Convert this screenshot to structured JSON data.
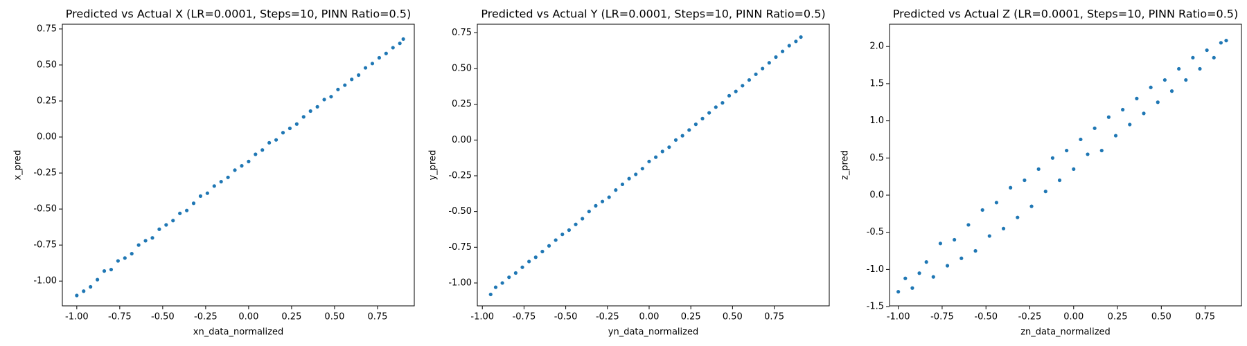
{
  "chart_data": [
    {
      "type": "scatter",
      "title": "Predicted vs Actual X (LR=0.0001, Steps=10, PINN Ratio=0.5)",
      "x_label": "xn_data_normalized",
      "y_label": "x_pred",
      "color": "#1f77b4",
      "xlim": [
        -1.084,
        0.964
      ],
      "ylim": [
        -1.172,
        0.783
      ],
      "xticks": [
        {
          "value": -1,
          "label": "-1.00"
        },
        -0.75,
        {
          "value": -0.5,
          "label": "-0.50"
        },
        -0.25,
        {
          "value": 0,
          "label": "0.00"
        },
        0.25,
        {
          "value": 0.5,
          "label": "0.50"
        },
        0.75
      ],
      "yticks": [
        {
          "value": -1,
          "label": "-1.00"
        },
        -0.75,
        {
          "value": -0.5,
          "label": "-0.50"
        },
        -0.25,
        {
          "value": 0,
          "label": "0.00"
        },
        0.25,
        {
          "value": 0.5,
          "label": "0.50"
        },
        0.75
      ],
      "x": [
        -1.0,
        -0.96,
        -0.92,
        -0.88,
        -0.84,
        -0.8,
        -0.76,
        -0.72,
        -0.68,
        -0.64,
        -0.6,
        -0.56,
        -0.52,
        -0.48,
        -0.44,
        -0.4,
        -0.36,
        -0.32,
        -0.28,
        -0.24,
        -0.2,
        -0.16,
        -0.12,
        -0.08,
        -0.04,
        0.0,
        0.04,
        0.08,
        0.12,
        0.16,
        0.2,
        0.24,
        0.28,
        0.32,
        0.36,
        0.4,
        0.44,
        0.48,
        0.52,
        0.56,
        0.6,
        0.64,
        0.68,
        0.72,
        0.76,
        0.8,
        0.84,
        0.88,
        0.9
      ],
      "values": [
        -1.1,
        -1.07,
        -1.04,
        -0.99,
        -0.93,
        -0.92,
        -0.86,
        -0.84,
        -0.81,
        -0.75,
        -0.72,
        -0.7,
        -0.64,
        -0.61,
        -0.58,
        -0.53,
        -0.51,
        -0.46,
        -0.41,
        -0.39,
        -0.34,
        -0.31,
        -0.28,
        -0.23,
        -0.2,
        -0.17,
        -0.12,
        -0.09,
        -0.04,
        -0.02,
        0.03,
        0.06,
        0.09,
        0.14,
        0.18,
        0.21,
        0.26,
        0.28,
        0.33,
        0.36,
        0.4,
        0.43,
        0.48,
        0.51,
        0.55,
        0.58,
        0.62,
        0.65,
        0.68
      ]
    },
    {
      "type": "scatter",
      "title": "Predicted vs Actual Y (LR=0.0001, Steps=10, PINN Ratio=0.5)",
      "x_label": "yn_data_normalized",
      "y_label": "y_pred",
      "color": "#1f77b4",
      "xlim": [
        -1.03,
        1.08
      ],
      "ylim": [
        -1.16,
        0.81
      ],
      "xticks": [
        {
          "value": -1,
          "label": "-1.00"
        },
        -0.75,
        {
          "value": -0.5,
          "label": "-0.50"
        },
        -0.25,
        {
          "value": 0,
          "label": "0.00"
        },
        0.25,
        {
          "value": 0.5,
          "label": "0.50"
        },
        0.75
      ],
      "yticks": [
        {
          "value": -1,
          "label": "-1.00"
        },
        -0.75,
        {
          "value": -0.5,
          "label": "-0.50"
        },
        -0.25,
        {
          "value": 0,
          "label": "0.00"
        },
        0.25,
        {
          "value": 0.5,
          "label": "0.50"
        },
        0.75
      ],
      "x": [
        -0.95,
        -0.92,
        -0.88,
        -0.84,
        -0.8,
        -0.76,
        -0.72,
        -0.68,
        -0.64,
        -0.6,
        -0.56,
        -0.52,
        -0.48,
        -0.44,
        -0.4,
        -0.36,
        -0.32,
        -0.28,
        -0.24,
        -0.2,
        -0.16,
        -0.12,
        -0.08,
        -0.04,
        0.0,
        0.04,
        0.08,
        0.12,
        0.16,
        0.2,
        0.24,
        0.28,
        0.32,
        0.36,
        0.4,
        0.44,
        0.48,
        0.52,
        0.56,
        0.6,
        0.64,
        0.68,
        0.72,
        0.76,
        0.8,
        0.84,
        0.88,
        0.91
      ],
      "values": [
        -1.08,
        -1.03,
        -1.0,
        -0.96,
        -0.93,
        -0.89,
        -0.85,
        -0.82,
        -0.78,
        -0.74,
        -0.7,
        -0.66,
        -0.63,
        -0.59,
        -0.55,
        -0.5,
        -0.46,
        -0.43,
        -0.4,
        -0.35,
        -0.31,
        -0.27,
        -0.24,
        -0.2,
        -0.15,
        -0.12,
        -0.08,
        -0.05,
        0.0,
        0.03,
        0.07,
        0.11,
        0.15,
        0.19,
        0.23,
        0.26,
        0.31,
        0.34,
        0.38,
        0.42,
        0.46,
        0.5,
        0.54,
        0.58,
        0.62,
        0.66,
        0.69,
        0.72
      ]
    },
    {
      "type": "scatter",
      "title": "Predicted vs Actual Z (LR=0.0001, Steps=10, PINN Ratio=0.5)",
      "x_label": "zn_data_normalized",
      "y_label": "z_pred",
      "color": "#1f77b4",
      "xlim": [
        -1.05,
        0.957
      ],
      "ylim": [
        -1.49,
        2.3
      ],
      "xticks": [
        {
          "value": -1,
          "label": "-1.00"
        },
        -0.75,
        {
          "value": -0.5,
          "label": "-0.50"
        },
        -0.25,
        {
          "value": 0,
          "label": "0.00"
        },
        0.25,
        {
          "value": 0.5,
          "label": "0.50"
        },
        0.75
      ],
      "yticks": [
        -1.5,
        {
          "value": -1,
          "label": "-1.0"
        },
        -0.5,
        {
          "value": 0,
          "label": "0.0"
        },
        0.5,
        {
          "value": 1,
          "label": "1.0"
        },
        1.5,
        {
          "value": 2,
          "label": "2.0"
        }
      ],
      "x": [
        -1.0,
        -0.96,
        -0.92,
        -0.88,
        -0.84,
        -0.8,
        -0.76,
        -0.72,
        -0.68,
        -0.64,
        -0.6,
        -0.56,
        -0.52,
        -0.48,
        -0.44,
        -0.4,
        -0.36,
        -0.32,
        -0.28,
        -0.24,
        -0.2,
        -0.16,
        -0.12,
        -0.08,
        -0.04,
        0.0,
        0.04,
        0.08,
        0.12,
        0.16,
        0.2,
        0.24,
        0.28,
        0.32,
        0.36,
        0.4,
        0.44,
        0.48,
        0.52,
        0.56,
        0.6,
        0.64,
        0.68,
        0.72,
        0.76,
        0.8,
        0.84,
        0.87
      ],
      "values": [
        -1.3,
        -1.12,
        -1.25,
        -1.05,
        -0.9,
        -1.1,
        -0.65,
        -0.95,
        -0.6,
        -0.85,
        -0.4,
        -0.75,
        -0.2,
        -0.55,
        -0.1,
        -0.45,
        0.1,
        -0.3,
        0.2,
        -0.15,
        0.35,
        0.05,
        0.5,
        0.2,
        0.6,
        0.35,
        0.75,
        0.55,
        0.9,
        0.6,
        1.05,
        0.8,
        1.15,
        0.95,
        1.3,
        1.1,
        1.45,
        1.25,
        1.55,
        1.4,
        1.7,
        1.55,
        1.85,
        1.7,
        1.95,
        1.85,
        2.05,
        2.08
      ]
    }
  ]
}
